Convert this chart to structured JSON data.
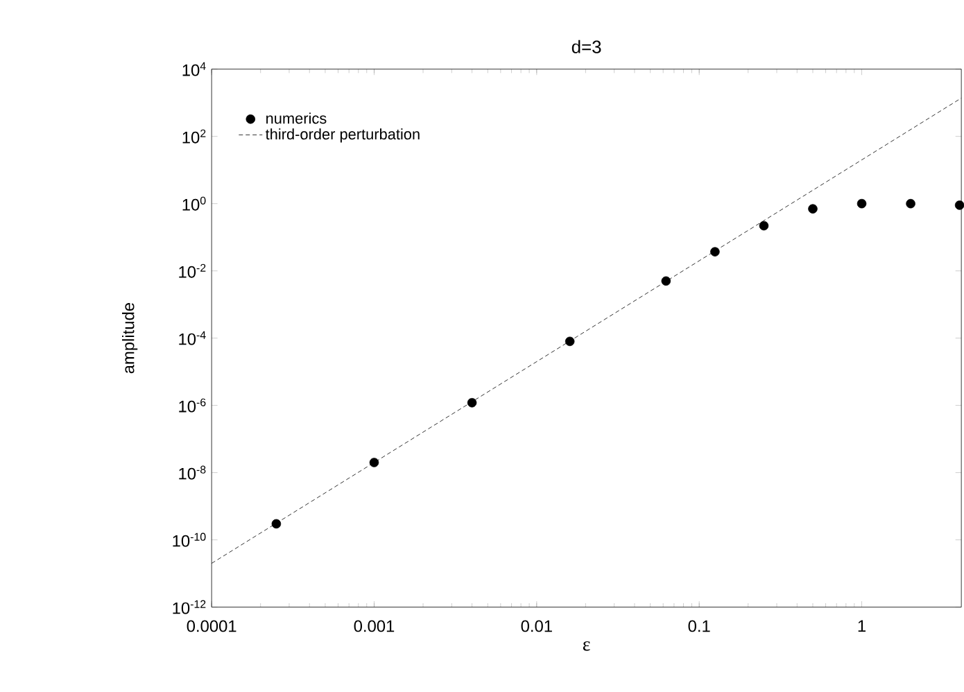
{
  "chart_data": {
    "type": "scatter",
    "title": "d=3",
    "xlabel": "ε",
    "ylabel": "amplitude",
    "log": "xy",
    "grid": false,
    "legend": "top left",
    "xlim": [
      0.0001,
      4.1
    ],
    "ylim": [
      1e-12,
      10000
    ],
    "xticks": [
      0.0001,
      0.001,
      0.01,
      0.1,
      1
    ],
    "yticks": [
      {
        "value": 1e-12,
        "label": "10$^{-12}$"
      },
      {
        "value": 1e-10,
        "label": "10$^{-10}$"
      },
      {
        "value": 1e-08,
        "label": "10$^{-8}$"
      },
      {
        "value": 1e-06,
        "label": "10$^{-6}$"
      },
      {
        "value": 0.0001,
        "label": "10$^{-4}$"
      },
      {
        "value": 0.01,
        "label": "10$^{-2}$"
      },
      {
        "value": 1,
        "label": "10$^{0}$"
      },
      {
        "value": 100,
        "label": "10$^{2}$"
      },
      {
        "value": 10000,
        "label": "10$^{4}$"
      }
    ],
    "series": [
      {
        "name": "numerics",
        "marker": "circle",
        "color": "#000000",
        "x": [
          0.00025,
          0.001,
          0.004,
          0.016,
          0.0625,
          0.125,
          0.25,
          0.5,
          1,
          2,
          4
        ],
        "values": [
          3e-10,
          2e-08,
          1.2e-06,
          8e-05,
          0.005,
          0.037,
          0.22,
          0.7,
          1.0,
          1.0,
          0.9
        ]
      },
      {
        "name": "third-order perturbation",
        "type": "line",
        "line_style": "dashed",
        "color": "#000000",
        "x": [
          0.0001,
          4.1
        ],
        "values": [
          2e-11,
          1378
        ]
      }
    ]
  }
}
